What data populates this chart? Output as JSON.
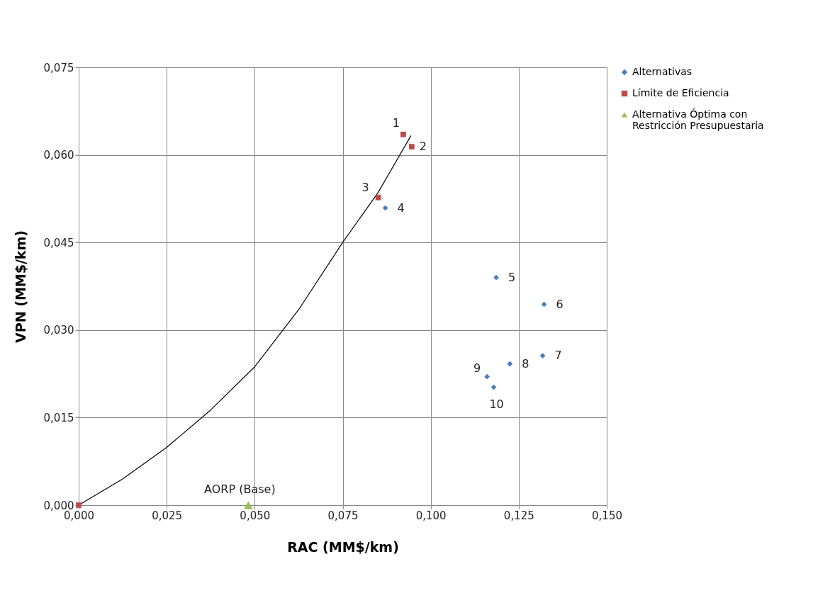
{
  "chart_data": {
    "type": "scatter",
    "xlabel": "RAC (MM$/km)",
    "ylabel": "VPN (MM$/km)",
    "series": [
      {
        "type": "line",
        "color": "#000000",
        "marker": "none",
        "line_style": "solid",
        "x": [
          0,
          0.0125,
          0.025,
          0.0375,
          0.05,
          0.0625,
          0.075,
          0.085,
          0.0944
        ],
        "values": [
          0,
          0.0045,
          0.0099,
          0.0163,
          0.0237,
          0.0335,
          0.045,
          0.0535,
          0.0633
        ]
      },
      {
        "type": "scatter",
        "name": "Alternativas",
        "color": "#4a7ebb",
        "marker": "diamond",
        "x": [
          0.0871,
          0.1186,
          0.1322,
          0.1318,
          0.1225,
          0.116,
          0.1179
        ],
        "values": [
          0.0509,
          0.039,
          0.0344,
          0.0256,
          0.0242,
          0.022,
          0.0202
        ]
      },
      {
        "type": "scatter",
        "name": "Límite de Eficiencia",
        "color": "#be4b48",
        "marker": "square",
        "x": [
          0,
          0.0922,
          0.0946,
          0.0851
        ],
        "values": [
          0,
          0.0635,
          0.0614,
          0.0527
        ]
      },
      {
        "type": "scatter",
        "name": "Alternativa Óptima con Restricción Presupuestaria",
        "color": "#9bbb59",
        "marker": "triangle",
        "x": [
          0.0482
        ],
        "values": [
          0
        ]
      }
    ],
    "annotations": [
      {
        "text": "1",
        "x": 0.0922,
        "y": 0.0635
      },
      {
        "text": "2",
        "x": 0.0946,
        "y": 0.0614
      },
      {
        "text": "3",
        "x": 0.0851,
        "y": 0.0527
      },
      {
        "text": "4",
        "x": 0.0871,
        "y": 0.0509
      },
      {
        "text": "5",
        "x": 0.1186,
        "y": 0.039
      },
      {
        "text": "6",
        "x": 0.1322,
        "y": 0.0344
      },
      {
        "text": "7",
        "x": 0.1318,
        "y": 0.0256
      },
      {
        "text": "8",
        "x": 0.1225,
        "y": 0.0242
      },
      {
        "text": "9",
        "x": 0.116,
        "y": 0.022
      },
      {
        "text": "10",
        "x": 0.1179,
        "y": 0.0202
      },
      {
        "text": "AORP (Base)",
        "x": 0.0482,
        "y": 0
      }
    ],
    "xlim": [
      0,
      0.15
    ],
    "ylim": [
      0,
      0.075
    ],
    "xticks": [
      {
        "value": 0,
        "label": "0,000"
      },
      {
        "value": 0.025,
        "label": "0,025"
      },
      {
        "value": 0.05,
        "label": "0,050"
      },
      {
        "value": 0.075,
        "label": "0,075"
      },
      {
        "value": 0.1,
        "label": "0,100"
      },
      {
        "value": 0.125,
        "label": "0,125"
      },
      {
        "value": 0.15,
        "label": "0,150"
      }
    ],
    "yticks": [
      {
        "value": 0,
        "label": "0,000"
      },
      {
        "value": 0.015,
        "label": "0,015"
      },
      {
        "value": 0.03,
        "label": "0,030"
      },
      {
        "value": 0.045,
        "label": "0,045"
      },
      {
        "value": 0.06,
        "label": "0,060"
      },
      {
        "value": 0.075,
        "label": "0,075"
      }
    ],
    "grid": true,
    "legend": "top right"
  }
}
